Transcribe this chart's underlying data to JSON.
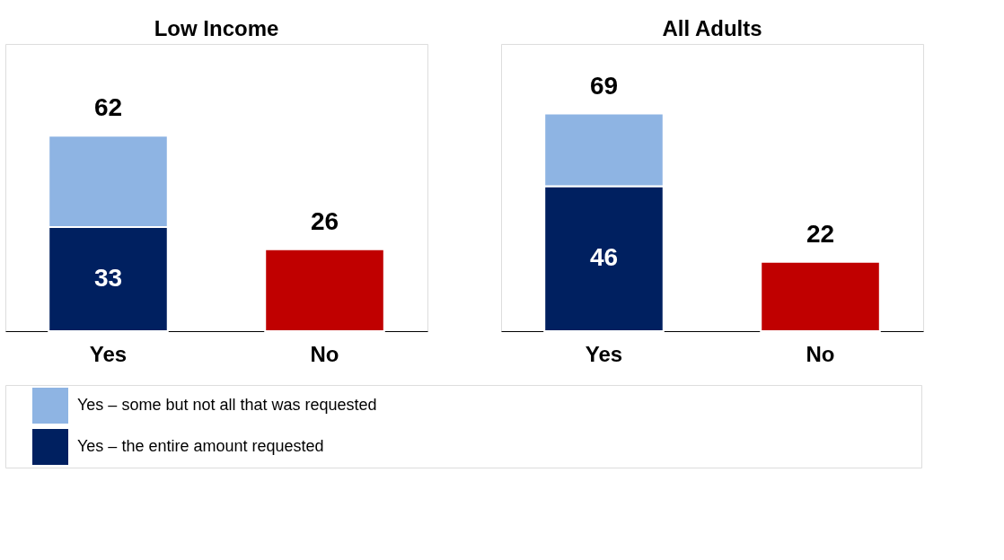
{
  "chart_data": [
    {
      "type": "bar",
      "title": "Low Income",
      "categories": [
        "Yes",
        "No"
      ],
      "stacked": true,
      "legend": "bottom left",
      "series": [
        {
          "name": "Yes – the entire amount requested",
          "color": "#002060",
          "values": [
            33,
            null
          ],
          "value_labels": [
            "33",
            null
          ]
        },
        {
          "name": "Yes – some but not all that was requested",
          "color": "#8eb4e3",
          "values": [
            29,
            null
          ]
        },
        {
          "color": "#c00000",
          "values": [
            null,
            26
          ]
        }
      ],
      "totals": [
        "62",
        "26"
      ]
    },
    {
      "type": "bar",
      "title": "All Adults",
      "categories": [
        "Yes",
        "No"
      ],
      "stacked": true,
      "series": [
        {
          "name": "Yes – the entire amount requested",
          "color": "#002060",
          "values": [
            46,
            null
          ],
          "value_labels": [
            "46",
            null
          ]
        },
        {
          "name": "Yes – some but not all that was requested",
          "color": "#8eb4e3",
          "values": [
            23,
            null
          ]
        },
        {
          "color": "#c00000",
          "values": [
            null,
            22
          ]
        }
      ],
      "totals": [
        "69",
        "22"
      ]
    }
  ]
}
